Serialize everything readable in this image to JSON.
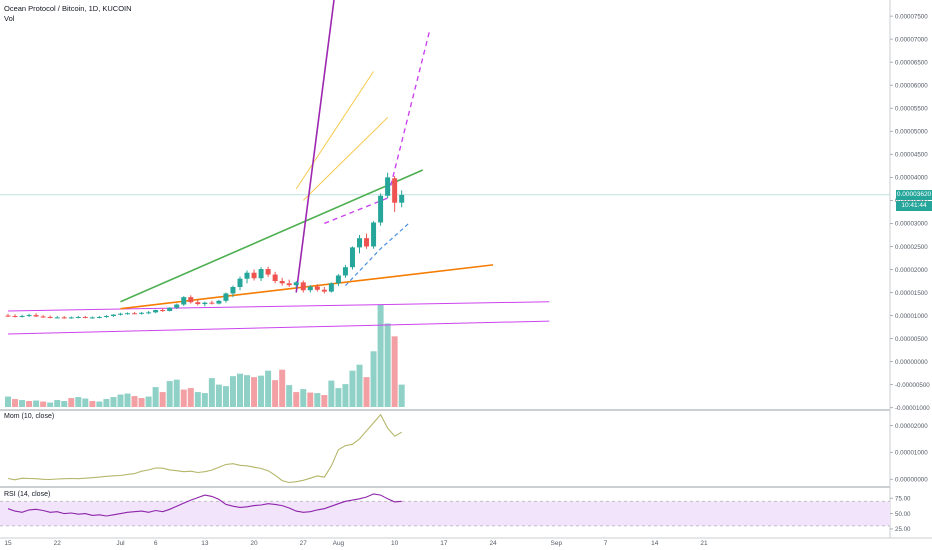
{
  "header": {
    "symbol_line": "Ocean Protocol / Bitcoin, 1D, KUCOIN",
    "volume_label": "Vol"
  },
  "last_price": {
    "value": "0.00003620",
    "countdown": "10:41:44"
  },
  "colors": {
    "up": "#26a69a",
    "down": "#ef5350",
    "vol_up": "#8fd1c7",
    "vol_down": "#f3a0a4",
    "green_trend": "#4caf50",
    "orange_trend": "#f57c00",
    "magenta_channel": "#cc44ee",
    "purple_line": "#9c27b0",
    "yellow_fan": "#f6c94e",
    "dash_blue": "#4a90e2",
    "momentum_line": "#b5b56a",
    "rsi_line": "#8e24aa",
    "rsi_band": "#f1e4fb"
  },
  "chart_data": [
    {
      "type": "candlestick",
      "title": "Ocean Protocol / Bitcoin, 1D, KUCOIN",
      "y_axis_ticks": [
        "0.00007500",
        "0.00007000",
        "0.00006500",
        "0.00006000",
        "0.00005500",
        "0.00005000",
        "0.00004500",
        "0.00004000",
        "0.00003500",
        "0.00003000",
        "0.00002500",
        "0.00002000",
        "0.00001500",
        "0.00001000",
        "0.00000500",
        "0.00000000",
        "-0.00000500",
        "-0.00001000"
      ],
      "y_axis_values": [
        7.5e-05,
        7e-05,
        6.5e-05,
        6e-05,
        5.5e-05,
        5e-05,
        4.5e-05,
        4e-05,
        3.5e-05,
        3e-05,
        2.5e-05,
        2e-05,
        1.5e-05,
        1e-05,
        5e-06,
        0,
        -5e-06,
        -1e-05
      ],
      "ylim": [
        -1.05e-05,
        7.85e-05
      ],
      "x_axis_ticks": [
        "15",
        "22",
        "Jul",
        "6",
        "13",
        "20",
        "27",
        "Aug",
        "10",
        "17",
        "24",
        "Sep",
        "7",
        "14",
        "21"
      ],
      "x_axis_tick_days": [
        0,
        7,
        16,
        21,
        28,
        35,
        42,
        47,
        55,
        62,
        69,
        78,
        85,
        92,
        99
      ],
      "last_price": 3.62e-05,
      "candles": [
        {
          "o": 1e-05,
          "h": 1.04e-05,
          "l": 9.7e-06,
          "c": 9.9e-06
        },
        {
          "o": 9.9e-06,
          "h": 1.03e-05,
          "l": 9.6e-06,
          "c": 9.8e-06
        },
        {
          "o": 9.8e-06,
          "h": 1.02e-05,
          "l": 9.6e-06,
          "c": 9.9e-06
        },
        {
          "o": 9.9e-06,
          "h": 1.04e-05,
          "l": 9.7e-06,
          "c": 1.01e-05
        },
        {
          "o": 1.01e-05,
          "h": 1.05e-05,
          "l": 9.7e-06,
          "c": 9.8e-06
        },
        {
          "o": 9.8e-06,
          "h": 1.01e-05,
          "l": 9.5e-06,
          "c": 9.7e-06
        },
        {
          "o": 9.7e-06,
          "h": 1e-05,
          "l": 9.4e-06,
          "c": 9.6e-06
        },
        {
          "o": 9.6e-06,
          "h": 9.9e-06,
          "l": 9.4e-06,
          "c": 9.6e-06
        },
        {
          "o": 9.6e-06,
          "h": 9.9e-06,
          "l": 9.3e-06,
          "c": 9.5e-06
        },
        {
          "o": 9.5e-06,
          "h": 9.8e-06,
          "l": 9.3e-06,
          "c": 9.6e-06
        },
        {
          "o": 9.6e-06,
          "h": 9.9e-06,
          "l": 9.4e-06,
          "c": 9.7e-06
        },
        {
          "o": 9.7e-06,
          "h": 9.9e-06,
          "l": 9.4e-06,
          "c": 9.5e-06
        },
        {
          "o": 9.5e-06,
          "h": 9.8e-06,
          "l": 9.3e-06,
          "c": 9.6e-06
        },
        {
          "o": 9.6e-06,
          "h": 9.9e-06,
          "l": 9.4e-06,
          "c": 9.7e-06
        },
        {
          "o": 9.7e-06,
          "h": 1.01e-05,
          "l": 9.5e-06,
          "c": 9.9e-06
        },
        {
          "o": 9.9e-06,
          "h": 1.03e-05,
          "l": 9.7e-06,
          "c": 1.02e-05
        },
        {
          "o": 1.02e-05,
          "h": 1.06e-05,
          "l": 1e-05,
          "c": 1.04e-05
        },
        {
          "o": 1.04e-05,
          "h": 1.07e-05,
          "l": 1.02e-05,
          "c": 1.05e-05
        },
        {
          "o": 1.05e-05,
          "h": 1.08e-05,
          "l": 1.03e-05,
          "c": 1.04e-05
        },
        {
          "o": 1.04e-05,
          "h": 1.08e-05,
          "l": 1.02e-05,
          "c": 1.06e-05
        },
        {
          "o": 1.06e-05,
          "h": 1.1e-05,
          "l": 1.03e-05,
          "c": 1.07e-05
        },
        {
          "o": 1.07e-05,
          "h": 1.13e-05,
          "l": 1.05e-05,
          "c": 1.12e-05
        },
        {
          "o": 1.12e-05,
          "h": 1.16e-05,
          "l": 1.08e-05,
          "c": 1.1e-05
        },
        {
          "o": 1.1e-05,
          "h": 1.18e-05,
          "l": 1.09e-05,
          "c": 1.17e-05
        },
        {
          "o": 1.17e-05,
          "h": 1.26e-05,
          "l": 1.14e-05,
          "c": 1.24e-05
        },
        {
          "o": 1.24e-05,
          "h": 1.42e-05,
          "l": 1.21e-05,
          "c": 1.4e-05
        },
        {
          "o": 1.4e-05,
          "h": 1.44e-05,
          "l": 1.26e-05,
          "c": 1.29e-05
        },
        {
          "o": 1.29e-05,
          "h": 1.34e-05,
          "l": 1.22e-05,
          "c": 1.25e-05
        },
        {
          "o": 1.25e-05,
          "h": 1.3e-05,
          "l": 1.2e-05,
          "c": 1.28e-05
        },
        {
          "o": 1.28e-05,
          "h": 1.32e-05,
          "l": 1.24e-05,
          "c": 1.26e-05
        },
        {
          "o": 1.26e-05,
          "h": 1.34e-05,
          "l": 1.24e-05,
          "c": 1.32e-05
        },
        {
          "o": 1.32e-05,
          "h": 1.5e-05,
          "l": 1.28e-05,
          "c": 1.48e-05
        },
        {
          "o": 1.48e-05,
          "h": 1.65e-05,
          "l": 1.4e-05,
          "c": 1.62e-05
        },
        {
          "o": 1.62e-05,
          "h": 1.85e-05,
          "l": 1.55e-05,
          "c": 1.8e-05
        },
        {
          "o": 1.8e-05,
          "h": 1.98e-05,
          "l": 1.7e-05,
          "c": 1.93e-05
        },
        {
          "o": 1.93e-05,
          "h": 2e-05,
          "l": 1.76e-05,
          "c": 1.81e-05
        },
        {
          "o": 1.81e-05,
          "h": 2.05e-05,
          "l": 1.75e-05,
          "c": 2.01e-05
        },
        {
          "o": 2.01e-05,
          "h": 2.06e-05,
          "l": 1.84e-05,
          "c": 1.89e-05
        },
        {
          "o": 1.89e-05,
          "h": 1.95e-05,
          "l": 1.7e-05,
          "c": 1.75e-05
        },
        {
          "o": 1.75e-05,
          "h": 1.82e-05,
          "l": 1.65e-05,
          "c": 1.7e-05
        },
        {
          "o": 1.7e-05,
          "h": 1.78e-05,
          "l": 1.62e-05,
          "c": 1.66e-05
        },
        {
          "o": 1.66e-05,
          "h": 1.75e-05,
          "l": 1.6e-05,
          "c": 1.72e-05
        },
        {
          "o": 1.72e-05,
          "h": 1.76e-05,
          "l": 1.5e-05,
          "c": 1.55e-05
        },
        {
          "o": 1.55e-05,
          "h": 1.66e-05,
          "l": 1.5e-05,
          "c": 1.63e-05
        },
        {
          "o": 1.63e-05,
          "h": 1.68e-05,
          "l": 1.52e-05,
          "c": 1.56e-05
        },
        {
          "o": 1.56e-05,
          "h": 1.62e-05,
          "l": 1.48e-05,
          "c": 1.52e-05
        },
        {
          "o": 1.52e-05,
          "h": 1.72e-05,
          "l": 1.5e-05,
          "c": 1.7e-05
        },
        {
          "o": 1.7e-05,
          "h": 1.9e-05,
          "l": 1.64e-05,
          "c": 1.87e-05
        },
        {
          "o": 1.87e-05,
          "h": 2.1e-05,
          "l": 1.82e-05,
          "c": 2.05e-05
        },
        {
          "o": 2.05e-05,
          "h": 2.5e-05,
          "l": 2e-05,
          "c": 2.48e-05
        },
        {
          "o": 2.48e-05,
          "h": 2.75e-05,
          "l": 2.35e-05,
          "c": 2.68e-05
        },
        {
          "o": 2.68e-05,
          "h": 2.78e-05,
          "l": 2.45e-05,
          "c": 2.5e-05
        },
        {
          "o": 2.5e-05,
          "h": 3.05e-05,
          "l": 2.45e-05,
          "c": 3.02e-05
        },
        {
          "o": 3.02e-05,
          "h": 3.65e-05,
          "l": 2.95e-05,
          "c": 3.6e-05
        },
        {
          "o": 3.6e-05,
          "h": 4.1e-05,
          "l": 3.55e-05,
          "c": 4e-05
        },
        {
          "o": 3.98e-05,
          "h": 4.03e-05,
          "l": 3.25e-05,
          "c": 3.45e-05
        },
        {
          "o": 3.45e-05,
          "h": 3.72e-05,
          "l": 3.35e-05,
          "c": 3.62e-05
        }
      ],
      "volume": [
        {
          "v": 21,
          "up": true
        },
        {
          "v": 16,
          "up": false
        },
        {
          "v": 14,
          "up": true
        },
        {
          "v": 12,
          "up": false
        },
        {
          "v": 13,
          "up": true
        },
        {
          "v": 11,
          "up": false
        },
        {
          "v": 9,
          "up": true
        },
        {
          "v": 14,
          "up": true
        },
        {
          "v": 12,
          "up": true
        },
        {
          "v": 18,
          "up": false
        },
        {
          "v": 20,
          "up": true
        },
        {
          "v": 17,
          "up": true
        },
        {
          "v": 12,
          "up": false
        },
        {
          "v": 11,
          "up": true
        },
        {
          "v": 16,
          "up": true
        },
        {
          "v": 20,
          "up": true
        },
        {
          "v": 25,
          "up": true
        },
        {
          "v": 27,
          "up": true
        },
        {
          "v": 22,
          "up": false
        },
        {
          "v": 18,
          "up": false
        },
        {
          "v": 21,
          "up": true
        },
        {
          "v": 40,
          "up": true
        },
        {
          "v": 30,
          "up": false
        },
        {
          "v": 52,
          "up": true
        },
        {
          "v": 55,
          "up": true
        },
        {
          "v": 35,
          "up": false
        },
        {
          "v": 38,
          "up": false
        },
        {
          "v": 30,
          "up": true
        },
        {
          "v": 28,
          "up": true
        },
        {
          "v": 58,
          "up": true
        },
        {
          "v": 45,
          "up": true
        },
        {
          "v": 42,
          "up": true
        },
        {
          "v": 62,
          "up": true
        },
        {
          "v": 67,
          "up": true
        },
        {
          "v": 64,
          "up": true
        },
        {
          "v": 60,
          "up": false
        },
        {
          "v": 63,
          "up": true
        },
        {
          "v": 73,
          "up": true
        },
        {
          "v": 54,
          "up": false
        },
        {
          "v": 75,
          "up": false
        },
        {
          "v": 44,
          "up": true
        },
        {
          "v": 30,
          "up": false
        },
        {
          "v": 36,
          "up": true
        },
        {
          "v": 29,
          "up": false
        },
        {
          "v": 28,
          "up": true
        },
        {
          "v": 24,
          "up": false
        },
        {
          "v": 53,
          "up": true
        },
        {
          "v": 38,
          "up": true
        },
        {
          "v": 46,
          "up": true
        },
        {
          "v": 73,
          "up": true
        },
        {
          "v": 85,
          "up": true
        },
        {
          "v": 60,
          "up": false
        },
        {
          "v": 112,
          "up": true
        },
        {
          "v": 205,
          "up": true
        },
        {
          "v": 168,
          "up": true
        },
        {
          "v": 142,
          "up": false
        },
        {
          "v": 45,
          "up": true
        }
      ],
      "drawings": {
        "green_trend": [
          [
            16,
            1.3e-05
          ],
          [
            59,
            4.16e-05
          ]
        ],
        "orange_trend": [
          [
            16,
            1.15e-05
          ],
          [
            69,
            2.1e-05
          ]
        ],
        "channel_top": [
          [
            0,
            1.1e-05
          ],
          [
            77,
            1.3e-05
          ]
        ],
        "channel_bottom": [
          [
            0,
            6e-06
          ],
          [
            77,
            8.8e-06
          ]
        ],
        "purple_steep": [
          [
            41,
            1.5e-05
          ],
          [
            46.5,
            8e-05
          ]
        ],
        "fan_upper": [
          [
            41,
            3.75e-05
          ],
          [
            52,
            6.3e-05
          ]
        ],
        "fan_lower": [
          [
            42,
            3.5e-05
          ],
          [
            54,
            5.3e-05
          ]
        ]
      }
    },
    {
      "type": "line",
      "title": "Mom (10, close)",
      "y_axis_ticks": [
        "0.00002000",
        "0.00001000",
        "0.00000000"
      ],
      "y_axis_values": [
        2e-05,
        1e-05,
        0
      ],
      "ylim": [
        -2.5e-06,
        2.5e-05
      ],
      "series": [
        {
          "values": [
            3e-07,
            -2e-07,
            4e-07,
            3e-07,
            2e-07,
            0,
            -1e-07,
            1e-07,
            2e-07,
            3e-07,
            2e-07,
            4e-07,
            6e-07,
            8e-07,
            1.1e-06,
            1.3e-06,
            1.4e-06,
            1.8e-06,
            2.1e-06,
            3e-06,
            3.5e-06,
            4.2e-06,
            4.1e-06,
            3.5e-06,
            3.2e-06,
            2.8e-06,
            3e-06,
            2.5e-06,
            2.8e-06,
            3.4e-06,
            4.5e-06,
            5.5e-06,
            5.8e-06,
            5.2e-06,
            5e-06,
            4.5e-06,
            4e-06,
            3.2e-06,
            1.5e-06,
            -5e-07,
            -1.2e-06,
            -9e-07,
            -4e-07,
            4e-07,
            1.2e-06,
            8e-07,
            5e-06,
            1.1e-05,
            1.25e-05,
            1.3e-05,
            1.5e-05,
            1.8e-05,
            2.1e-05,
            2.4e-05,
            1.9e-05,
            1.6e-05,
            1.75e-05
          ]
        }
      ]
    },
    {
      "type": "line",
      "title": "RSI (14, close)",
      "y_axis_ticks": [
        "75.00",
        "50.00",
        "25.00"
      ],
      "y_axis_values": [
        75,
        50,
        25
      ],
      "ylim": [
        20,
        90
      ],
      "band": [
        30,
        70
      ],
      "series": [
        {
          "values": [
            58,
            54,
            52,
            56,
            57,
            55,
            52,
            53,
            50,
            51,
            49,
            50,
            47,
            48,
            46,
            48,
            50,
            52,
            53,
            54,
            52,
            55,
            53,
            57,
            62,
            67,
            72,
            76,
            80,
            78,
            73,
            65,
            62,
            60,
            61,
            63,
            64,
            66,
            65,
            63,
            59,
            54,
            52,
            53,
            56,
            58,
            62,
            66,
            70,
            72,
            74,
            77,
            82,
            80,
            74,
            69,
            70
          ]
        }
      ]
    }
  ]
}
